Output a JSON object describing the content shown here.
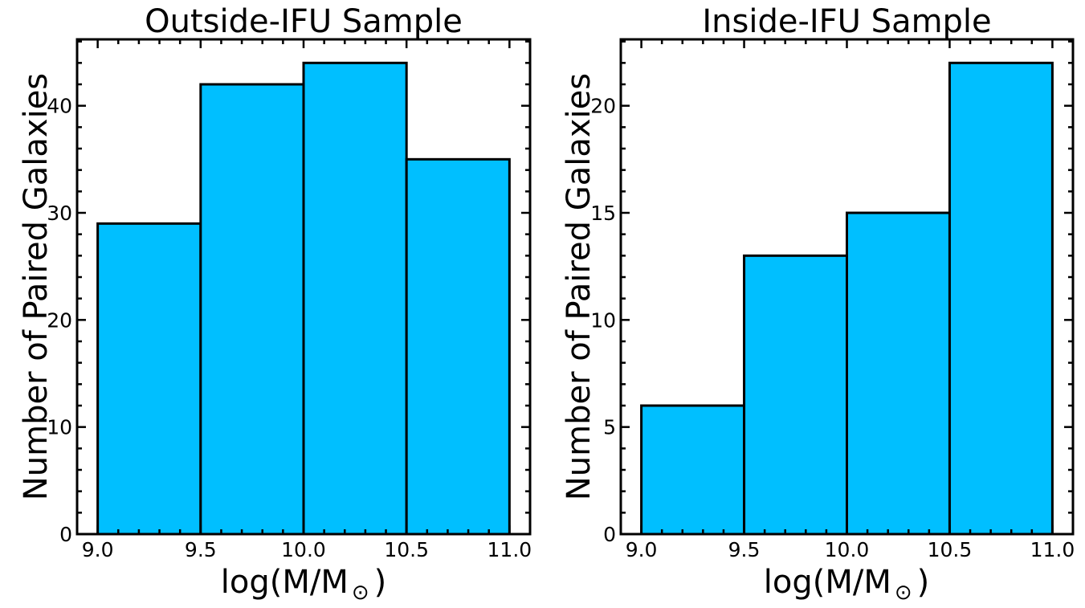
{
  "chart_data": [
    {
      "type": "bar",
      "title": "Outside-IFU Sample",
      "xlabel_main": "log(M/M",
      "xlabel_symbol": "⊙",
      "xlabel_close": ")",
      "ylabel": "Number of Paired Galaxies",
      "bins": [
        [
          9.0,
          9.5
        ],
        [
          9.5,
          10.0
        ],
        [
          10.0,
          10.5
        ],
        [
          10.5,
          11.0
        ]
      ],
      "values": [
        29,
        42,
        44,
        35
      ],
      "xlim": [
        8.9,
        11.1
      ],
      "ylim": [
        0,
        46.2
      ],
      "xticks": [
        "9.0",
        "9.5",
        "10.0",
        "10.5",
        "11.0"
      ],
      "yticks": [
        "0",
        "10",
        "20",
        "30",
        "40"
      ],
      "ytick_values": [
        0,
        10,
        20,
        30,
        40
      ],
      "ytick_minor_step": 2,
      "grid": false,
      "bar_color": "#00bfff",
      "edge_color": "#000000"
    },
    {
      "type": "bar",
      "title": "Inside-IFU Sample",
      "xlabel_main": "log(M/M",
      "xlabel_symbol": "⊙",
      "xlabel_close": ")",
      "ylabel": "Number of Paired Galaxies",
      "bins": [
        [
          9.0,
          9.5
        ],
        [
          9.5,
          10.0
        ],
        [
          10.0,
          10.5
        ],
        [
          10.5,
          11.0
        ]
      ],
      "values": [
        6,
        13,
        15,
        22
      ],
      "xlim": [
        8.9,
        11.1
      ],
      "ylim": [
        0,
        23.1
      ],
      "xticks": [
        "9.0",
        "9.5",
        "10.0",
        "10.5",
        "11.0"
      ],
      "yticks": [
        "0",
        "5",
        "10",
        "15",
        "20"
      ],
      "ytick_values": [
        0,
        5,
        10,
        15,
        20
      ],
      "ytick_minor_step": 1,
      "grid": false,
      "bar_color": "#00bfff",
      "edge_color": "#000000"
    }
  ]
}
